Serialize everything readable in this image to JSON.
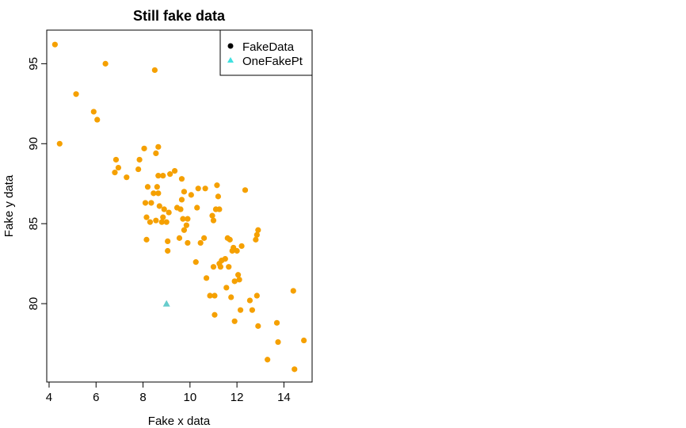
{
  "chart_data": {
    "type": "scatter",
    "title": "Still fake data",
    "xlabel": "Fake x data",
    "ylabel": "Fake y data",
    "xlim": [
      3.9,
      15.2
    ],
    "ylim": [
      75.1,
      97.1
    ],
    "xticks": [
      4,
      6,
      8,
      10,
      12,
      14
    ],
    "yticks": [
      80,
      85,
      90,
      95
    ],
    "grid": false,
    "legend_position": "top-right",
    "series": [
      {
        "name": "FakeData",
        "legend_color": "#000000",
        "color": "#F5A000",
        "marker": "circle",
        "points": [
          [
            4.25,
            96.2
          ],
          [
            4.45,
            90.0
          ],
          [
            5.15,
            93.1
          ],
          [
            5.9,
            92.0
          ],
          [
            6.05,
            91.5
          ],
          [
            6.4,
            95.0
          ],
          [
            6.8,
            88.2
          ],
          [
            6.85,
            89.0
          ],
          [
            6.95,
            88.5
          ],
          [
            7.3,
            87.9
          ],
          [
            7.8,
            88.4
          ],
          [
            7.85,
            89.0
          ],
          [
            8.05,
            89.7
          ],
          [
            8.1,
            86.3
          ],
          [
            8.15,
            84.0
          ],
          [
            8.15,
            85.4
          ],
          [
            8.2,
            87.3
          ],
          [
            8.3,
            85.1
          ],
          [
            8.35,
            86.3
          ],
          [
            8.45,
            86.9
          ],
          [
            8.5,
            94.6
          ],
          [
            8.55,
            89.4
          ],
          [
            8.55,
            85.2
          ],
          [
            8.6,
            87.3
          ],
          [
            8.65,
            88.0
          ],
          [
            8.65,
            86.9
          ],
          [
            8.65,
            89.8
          ],
          [
            8.7,
            86.1
          ],
          [
            8.8,
            85.1
          ],
          [
            8.85,
            85.4
          ],
          [
            8.85,
            88.0
          ],
          [
            8.9,
            85.9
          ],
          [
            9.0,
            85.1
          ],
          [
            9.05,
            83.3
          ],
          [
            9.05,
            83.9
          ],
          [
            9.1,
            85.7
          ],
          [
            9.15,
            88.1
          ],
          [
            9.35,
            88.3
          ],
          [
            9.45,
            86.0
          ],
          [
            9.55,
            84.1
          ],
          [
            9.6,
            85.9
          ],
          [
            9.65,
            87.8
          ],
          [
            9.65,
            86.5
          ],
          [
            9.7,
            85.3
          ],
          [
            9.75,
            87.0
          ],
          [
            9.75,
            84.6
          ],
          [
            9.85,
            84.9
          ],
          [
            9.9,
            85.3
          ],
          [
            9.9,
            83.8
          ],
          [
            10.05,
            86.8
          ],
          [
            10.25,
            82.6
          ],
          [
            10.3,
            86.0
          ],
          [
            10.35,
            87.2
          ],
          [
            10.45,
            83.8
          ],
          [
            10.6,
            84.1
          ],
          [
            10.65,
            87.2
          ],
          [
            10.7,
            81.6
          ],
          [
            10.85,
            80.5
          ],
          [
            10.95,
            85.5
          ],
          [
            11.0,
            82.3
          ],
          [
            11.0,
            85.2
          ],
          [
            11.05,
            80.5
          ],
          [
            11.05,
            79.3
          ],
          [
            11.1,
            85.9
          ],
          [
            11.15,
            87.4
          ],
          [
            11.2,
            86.7
          ],
          [
            11.25,
            85.9
          ],
          [
            11.25,
            82.5
          ],
          [
            11.3,
            82.3
          ],
          [
            11.35,
            82.7
          ],
          [
            11.5,
            82.8
          ],
          [
            11.55,
            81.0
          ],
          [
            11.6,
            84.1
          ],
          [
            11.65,
            82.3
          ],
          [
            11.7,
            84.0
          ],
          [
            11.75,
            80.4
          ],
          [
            11.8,
            83.3
          ],
          [
            11.85,
            83.5
          ],
          [
            11.9,
            81.4
          ],
          [
            11.9,
            78.9
          ],
          [
            12.0,
            83.3
          ],
          [
            12.05,
            81.8
          ],
          [
            12.1,
            81.5
          ],
          [
            12.15,
            79.6
          ],
          [
            12.2,
            83.6
          ],
          [
            12.35,
            87.1
          ],
          [
            12.55,
            80.2
          ],
          [
            12.65,
            79.6
          ],
          [
            12.8,
            84.0
          ],
          [
            12.85,
            80.5
          ],
          [
            12.85,
            84.3
          ],
          [
            12.9,
            78.6
          ],
          [
            12.9,
            84.6
          ],
          [
            13.3,
            76.5
          ],
          [
            13.7,
            78.8
          ],
          [
            13.75,
            77.6
          ],
          [
            14.4,
            80.8
          ],
          [
            14.45,
            75.9
          ],
          [
            14.85,
            77.7
          ]
        ]
      },
      {
        "name": "OneFakePt",
        "legend_color": "#40E0E0",
        "color": "#66CCCC",
        "marker": "triangle",
        "points": [
          [
            9.0,
            80.0
          ]
        ]
      }
    ]
  }
}
